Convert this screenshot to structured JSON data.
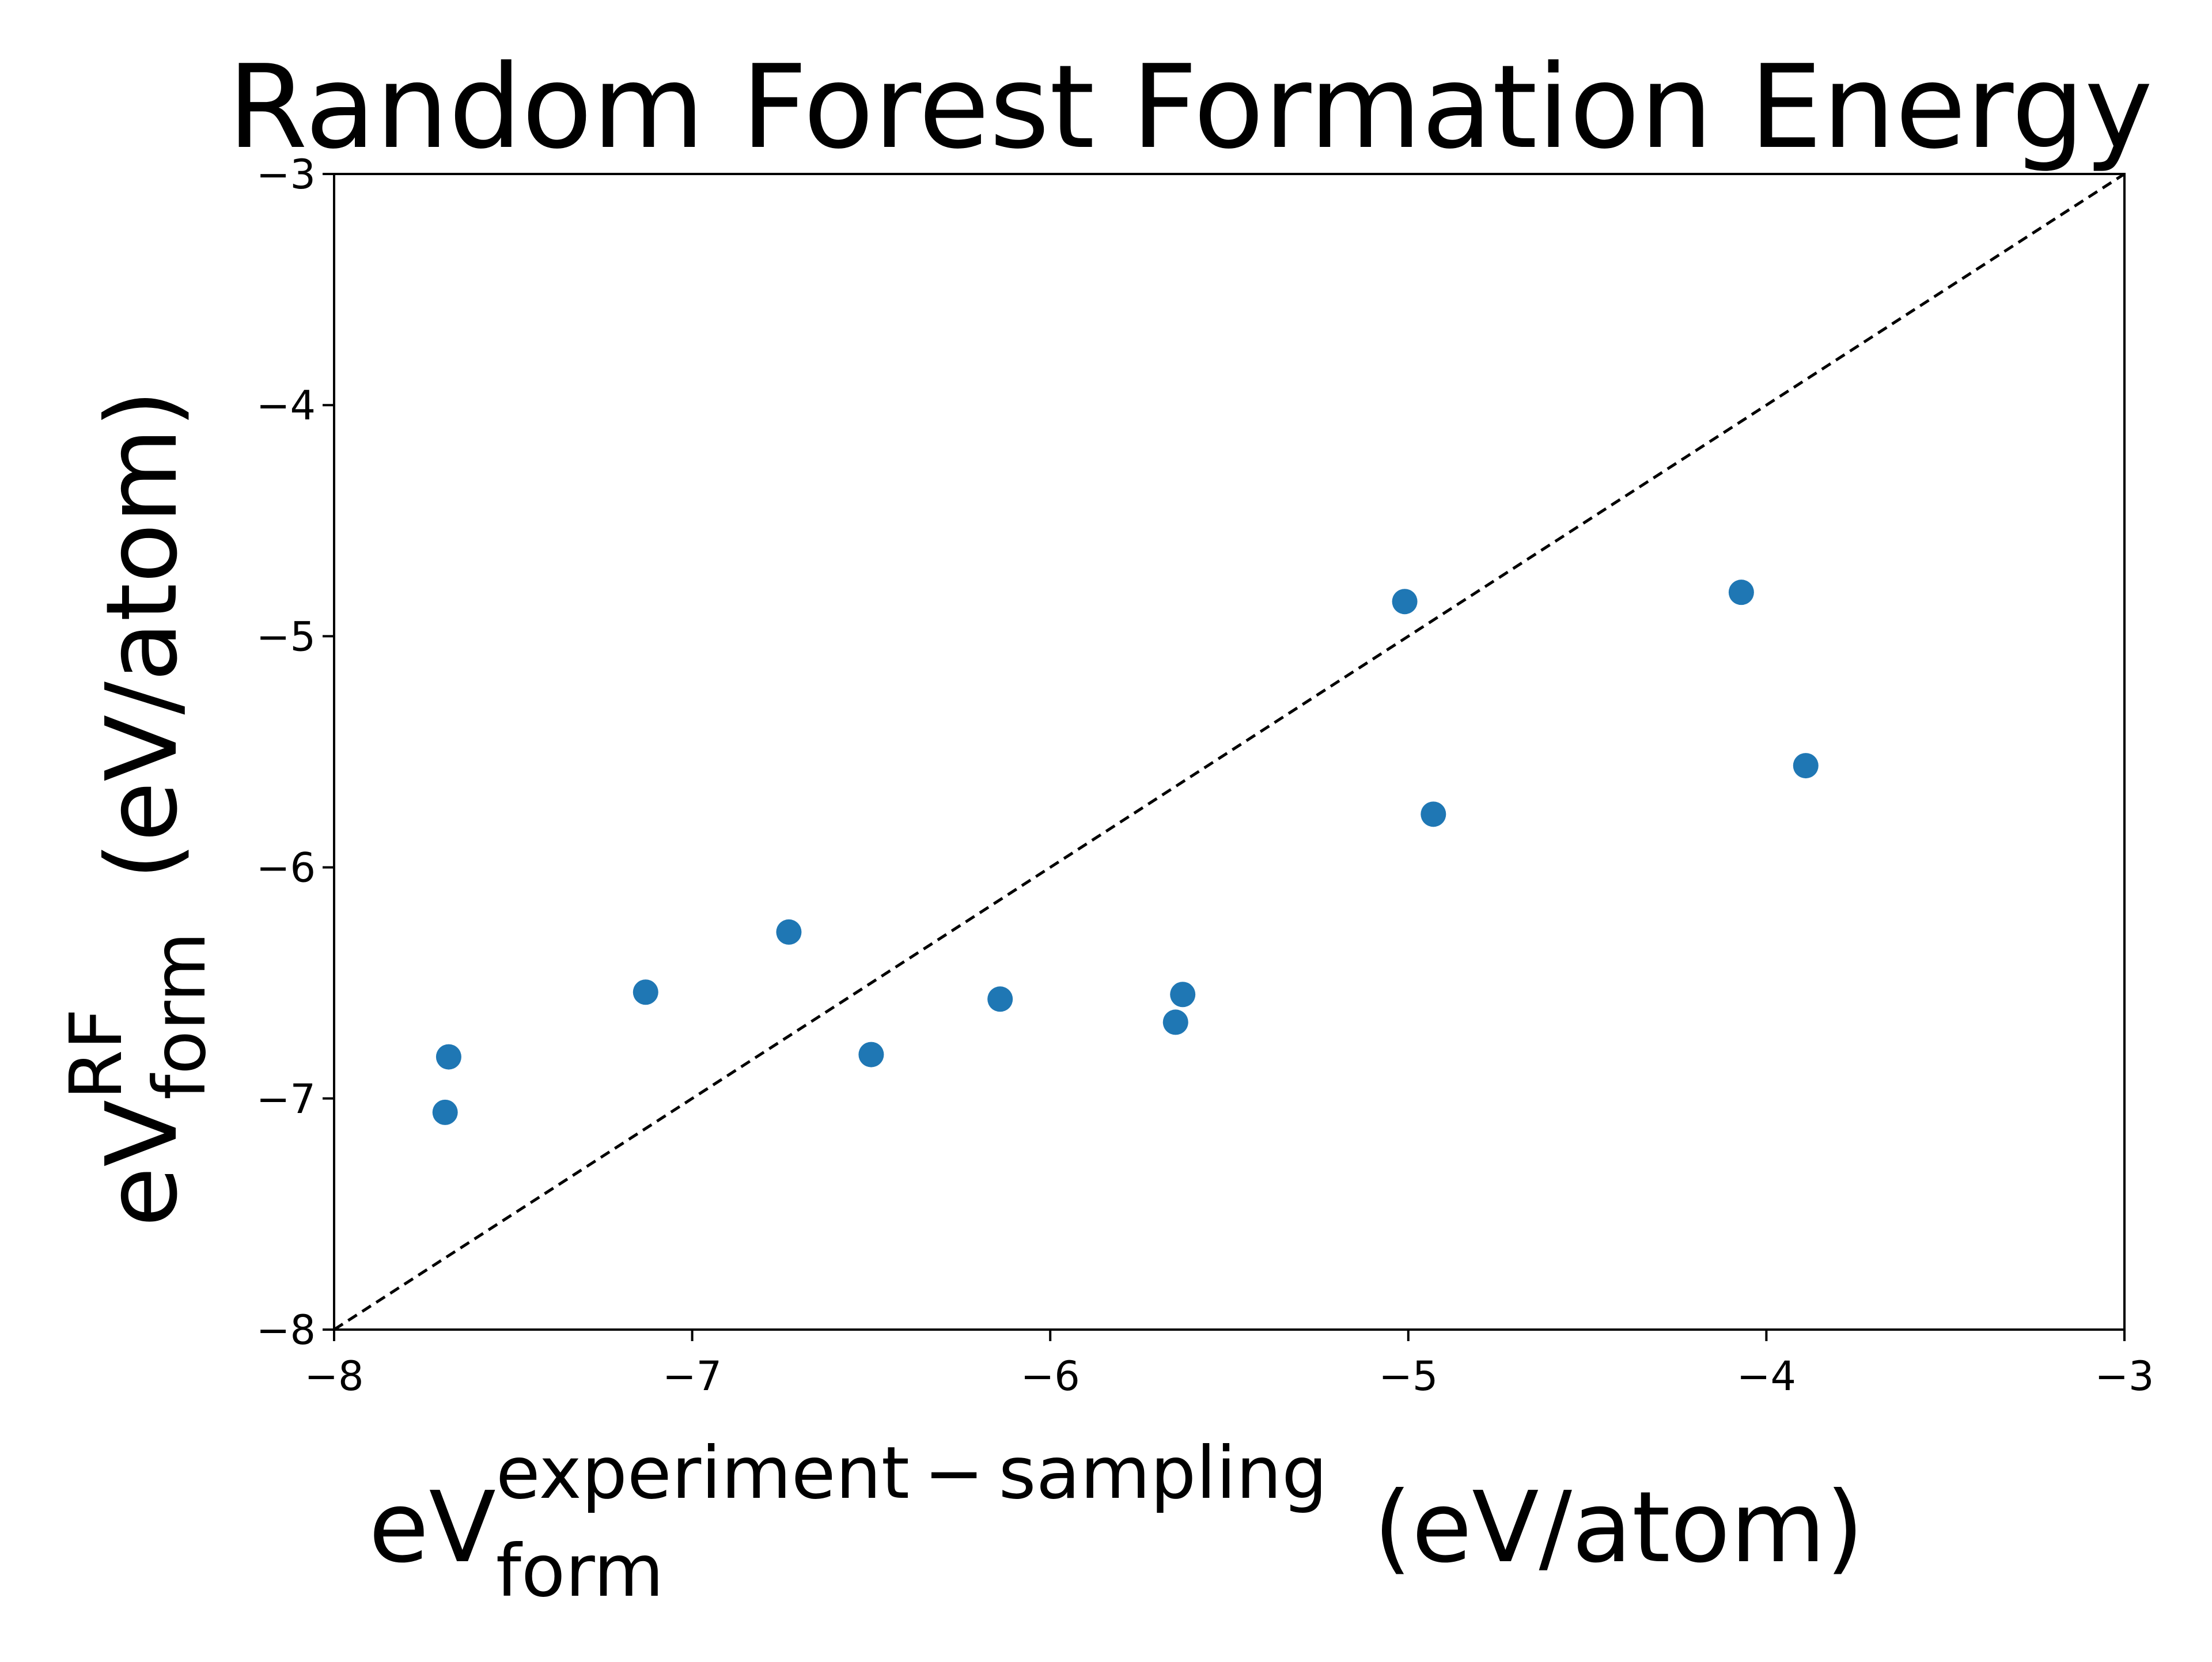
{
  "chart_data": {
    "type": "scatter",
    "title": "Random Forest Formation Energy",
    "xlabel": {
      "base": "eV",
      "superscript": "experiment − sampling",
      "subscript": "form",
      "unit": "(eV/atom)"
    },
    "ylabel": {
      "base": "eV",
      "superscript": "RF",
      "subscript": "form",
      "unit": "(eV/atom)"
    },
    "xlim": [
      -8,
      -3
    ],
    "ylim": [
      -8,
      -3
    ],
    "xticks": [
      -8,
      -7,
      -6,
      -5,
      -4,
      -3
    ],
    "yticks": [
      -8,
      -7,
      -6,
      -5,
      -4,
      -3
    ],
    "xtick_labels": [
      "−8",
      "−7",
      "−6",
      "−5",
      "−4",
      "−3"
    ],
    "ytick_labels": [
      "−8",
      "−7",
      "−6",
      "−5",
      "−4",
      "−3"
    ],
    "grid": false,
    "legend": "none",
    "reference_line": {
      "style": "dashed",
      "color": "#000000",
      "from": [
        -8,
        -8
      ],
      "to": [
        -3,
        -3
      ]
    },
    "series": [
      {
        "color": "#1f77b4",
        "points": [
          [
            -7.69,
            -7.06
          ],
          [
            -7.68,
            -6.82
          ],
          [
            -7.13,
            -6.54
          ],
          [
            -6.73,
            -6.28
          ],
          [
            -6.5,
            -6.81
          ],
          [
            -6.14,
            -6.57
          ],
          [
            -5.65,
            -6.67
          ],
          [
            -5.63,
            -6.55
          ],
          [
            -5.01,
            -4.85
          ],
          [
            -4.93,
            -5.77
          ],
          [
            -4.07,
            -4.81
          ],
          [
            -3.89,
            -5.56
          ]
        ]
      }
    ]
  }
}
